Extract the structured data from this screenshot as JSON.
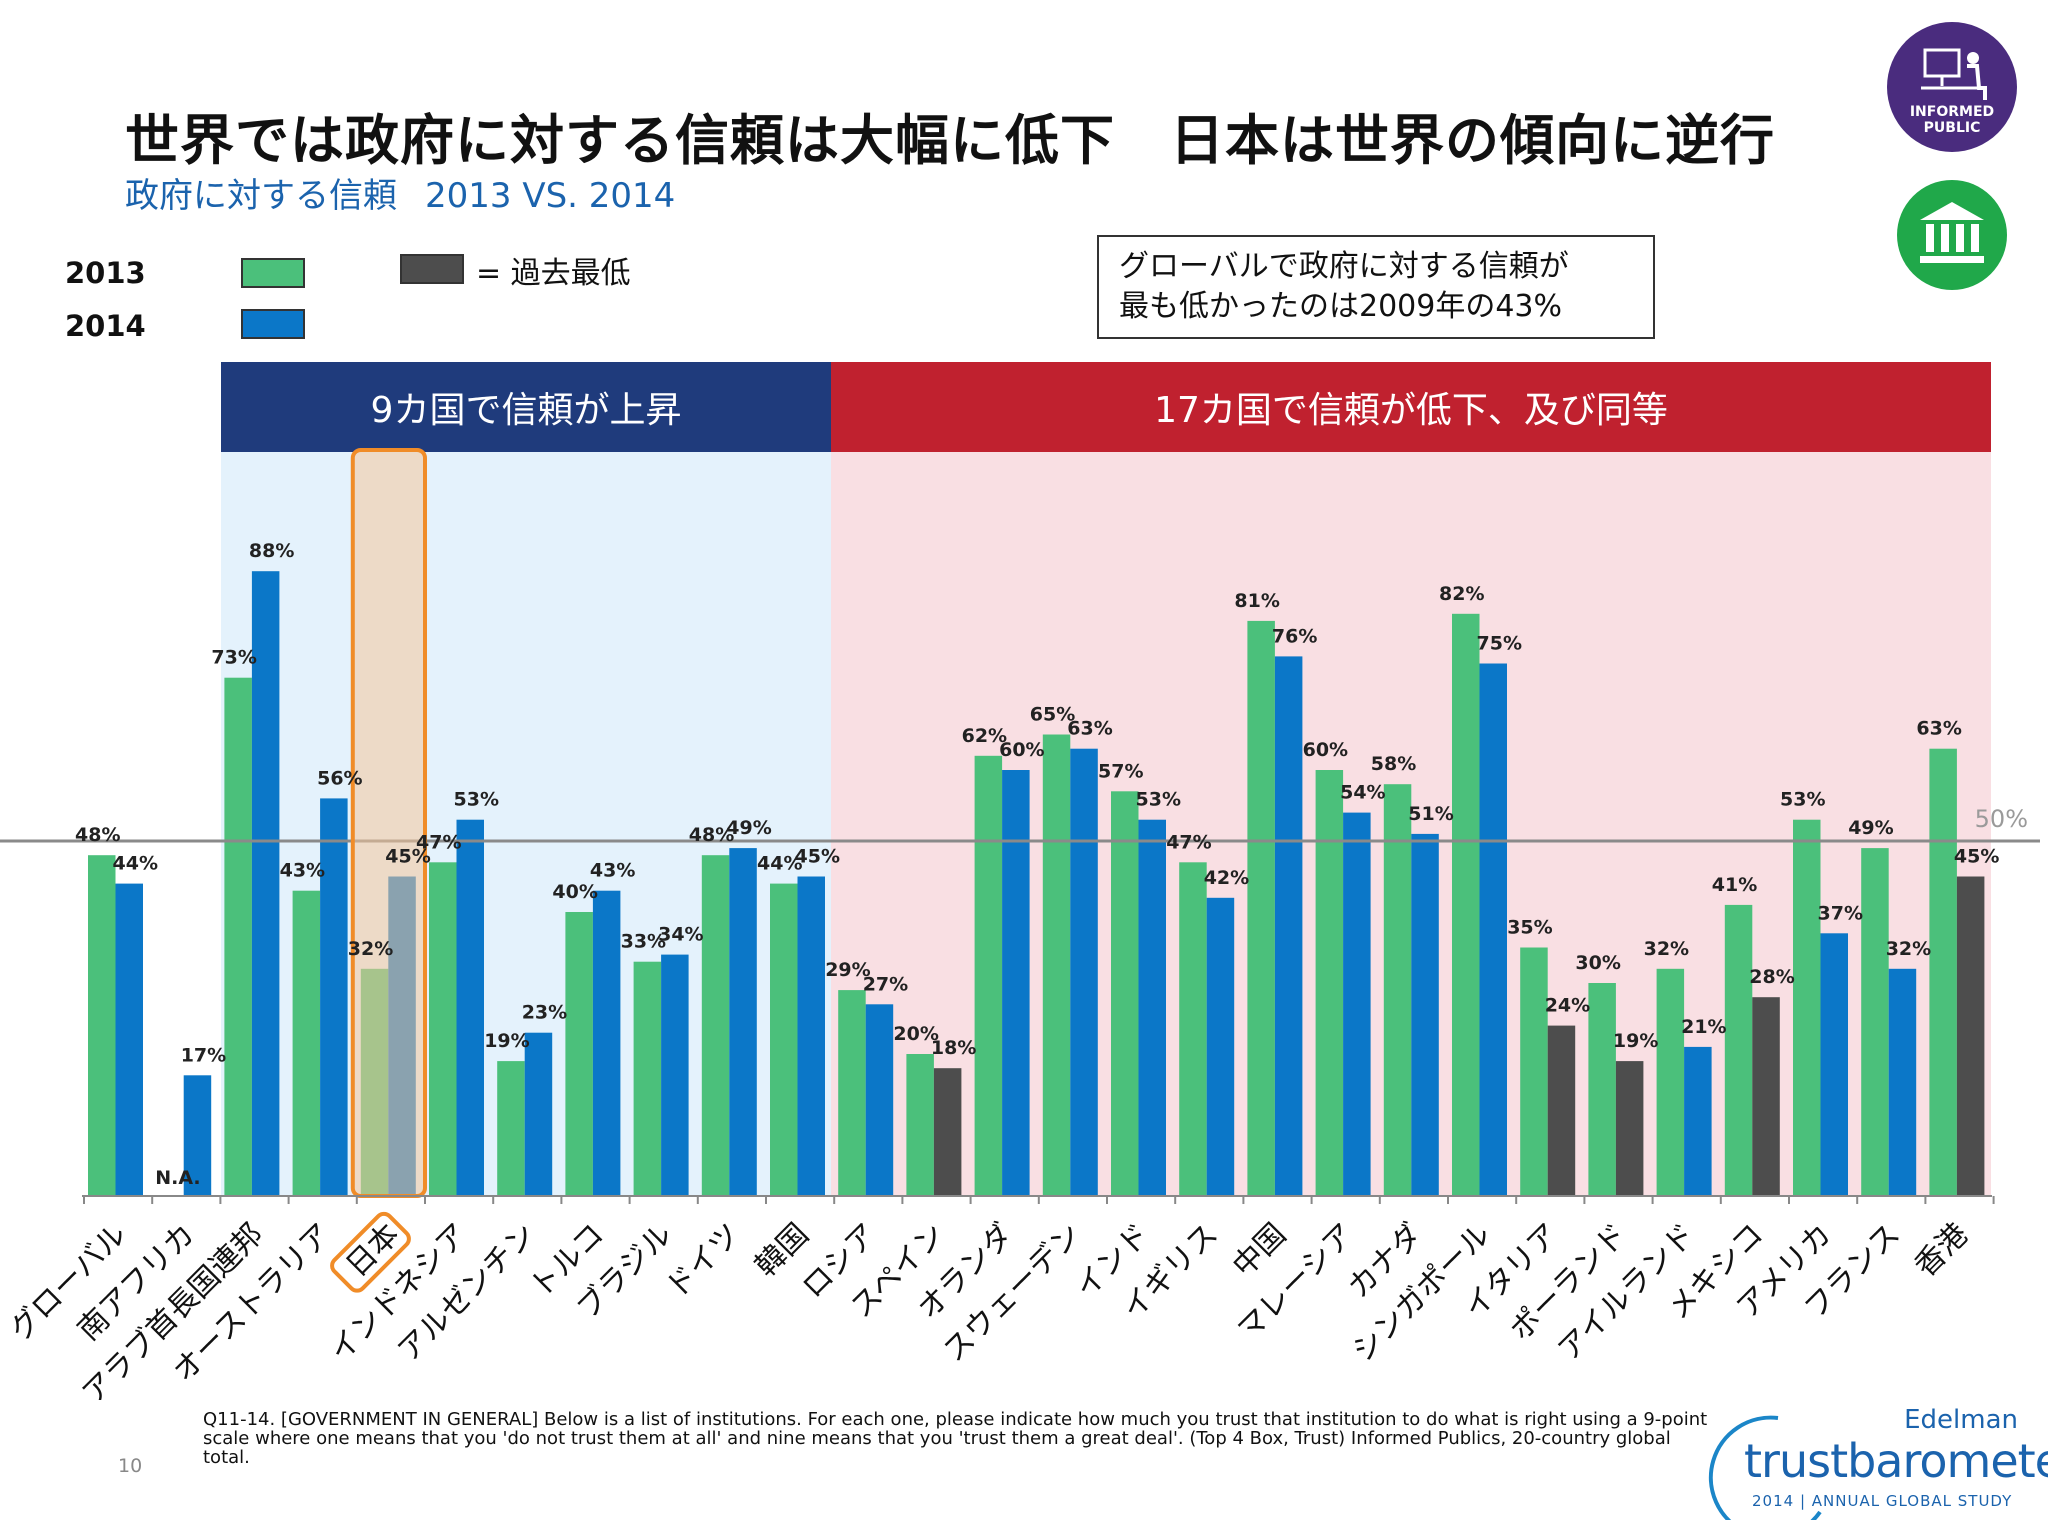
{
  "header": {
    "title": "世界では政府に対する信頼は大幅に低下　日本は世界の傾向に逆行",
    "subtitle": "政府に対する信頼",
    "subtitle_period": "2013 VS. 2014"
  },
  "legend": {
    "year1": "2013",
    "year2": "2014",
    "lowest_label": "= 過去最低",
    "colors": {
      "y2013": "#4bc07b",
      "y2014": "#0b77c8",
      "lowest": "#4d4d4d"
    }
  },
  "note": {
    "line1": "グローバルで政府に対する信頼が",
    "line2": "最も低かったのは2009年の43%"
  },
  "bands": {
    "rise": "9カ国で信頼が上昇",
    "fall": "17カ国で信頼が低下、及び同等",
    "rise_color": "#1f3b7c",
    "fall_color": "#c0212f"
  },
  "chart_data": {
    "type": "bar",
    "categories": [
      "グローバル",
      "南アフリカ",
      "アラブ首長国連邦",
      "オーストラリア",
      "日本",
      "インドネシア",
      "アルゼンチン",
      "トルコ",
      "ブラジル",
      "ドイツ",
      "韓国",
      "ロシア",
      "スペイン",
      "オランダ",
      "スウェーデン",
      "インド",
      "イギリス",
      "中国",
      "マレーシア",
      "カナダ",
      "シンガポール",
      "イタリア",
      "ポーランド",
      "アイルランド",
      "メキシコ",
      "アメリカ",
      "フランス",
      "香港"
    ],
    "series": [
      {
        "name": "2013",
        "values": [
          48,
          null,
          73,
          43,
          32,
          47,
          19,
          40,
          33,
          48,
          44,
          29,
          20,
          62,
          65,
          57,
          47,
          81,
          60,
          58,
          82,
          35,
          30,
          32,
          41,
          53,
          49,
          63
        ]
      },
      {
        "name": "2014",
        "values": [
          44,
          17,
          88,
          56,
          45,
          53,
          23,
          43,
          34,
          49,
          45,
          27,
          18,
          60,
          63,
          53,
          42,
          76,
          54,
          51,
          75,
          24,
          19,
          21,
          28,
          37,
          32,
          45
        ]
      }
    ],
    "lowest_ever_2014": [
      "スペイン",
      "イタリア",
      "ポーランド",
      "メキシコ",
      "香港"
    ],
    "na_label": "N.A.",
    "highlight_category": "日本",
    "reference_line": {
      "value": 50,
      "label": "50%"
    },
    "ylim": [
      0,
      100
    ]
  },
  "footer": {
    "footnote": "Q11-14. [GOVERNMENT IN GENERAL] Below is a list of institutions. For each one, please indicate how much you trust that institution to do what is right using a 9-point scale where one means that you 'do not trust them at all' and nine means that you 'trust them a great deal'. (Top 4 Box, Trust) Informed Publics, 20-country global total.",
    "page_number": "10",
    "brand_top": "Edelman",
    "brand_main": "trustbarometer",
    "brand_sub": "2014 | ANNUAL GLOBAL STUDY",
    "badge_text1": "INFORMED",
    "badge_text2": "PUBLIC"
  }
}
